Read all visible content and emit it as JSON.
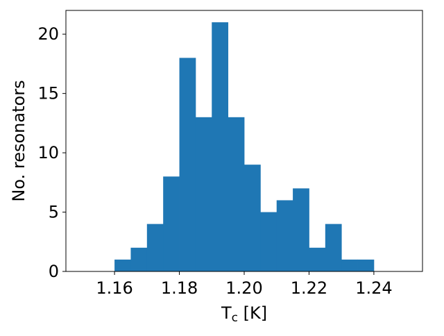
{
  "chart_data": {
    "type": "bar",
    "subtype": "histogram",
    "title": "",
    "xlabel": "T",
    "xlabel_subscript": "c",
    "xlabel_unit": " [K]",
    "ylabel": "No. resonators",
    "xlim": [
      1.145,
      1.255
    ],
    "ylim": [
      0,
      22
    ],
    "xticks": [
      1.16,
      1.18,
      1.2,
      1.22,
      1.24
    ],
    "xtick_labels": [
      "1.16",
      "1.18",
      "1.20",
      "1.22",
      "1.24"
    ],
    "yticks": [
      0,
      5,
      10,
      15,
      20
    ],
    "ytick_labels": [
      "0",
      "5",
      "10",
      "15",
      "20"
    ],
    "bin_edges": [
      1.16,
      1.165,
      1.17,
      1.175,
      1.18,
      1.185,
      1.19,
      1.195,
      1.2,
      1.205,
      1.21,
      1.215,
      1.22,
      1.225,
      1.23,
      1.235,
      1.24
    ],
    "values": [
      1,
      2,
      4,
      8,
      18,
      13,
      21,
      13,
      9,
      5,
      6,
      7,
      2,
      4,
      1,
      1
    ],
    "grid": false,
    "legend": "none",
    "bar_color": "#1f77b4"
  }
}
